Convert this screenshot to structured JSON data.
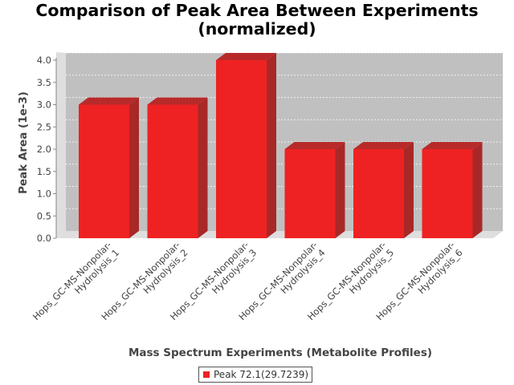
{
  "chart_data": {
    "type": "bar",
    "title_line1": "Comparison of Peak Area Between Experiments",
    "title_line2": "(normalized)",
    "xlabel": "Mass Spectrum Experiments (Metabolite Profiles)",
    "ylabel": "Peak Area (1e-3)",
    "ylim": [
      0,
      4.0
    ],
    "yticks": [
      "0.0",
      "0.5",
      "1.0",
      "1.5",
      "2.0",
      "2.5",
      "3.0",
      "3.5",
      "4.0"
    ],
    "categories": [
      [
        "Hops_GC-MS-Nonpolar-",
        "Hydrolysis_1"
      ],
      [
        "Hops_GC-MS-Nonpolar-",
        "Hydrolysis_2"
      ],
      [
        "Hops_GC-MS-Nonpolar-",
        "Hydrolysis_3"
      ],
      [
        "Hops_GC-MS-Nonpolar-",
        "Hydrolysis_4"
      ],
      [
        "Hops_GC-MS-Nonpolar-",
        "Hydrolysis_5"
      ],
      [
        "Hops_GC-MS-Nonpolar-",
        "Hydrolysis_6"
      ]
    ],
    "series": [
      {
        "name": "Peak 72.1(29.7239)",
        "values": [
          3.0,
          3.0,
          4.0,
          2.0,
          2.0,
          2.0
        ],
        "color": "#ee2222"
      }
    ],
    "grid": true,
    "legend_position": "bottom",
    "plot_background": "#c0c0c0"
  }
}
